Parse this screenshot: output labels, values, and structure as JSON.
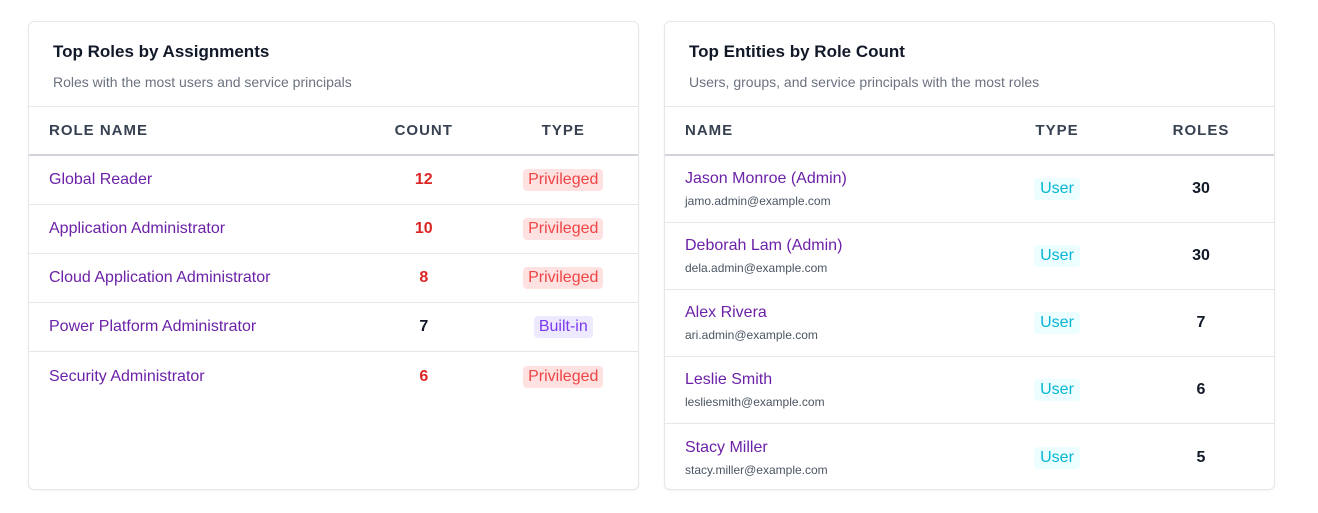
{
  "roles_card": {
    "title": "Top Roles by Assignments",
    "subtitle": "Roles with the most users and service principals",
    "columns": [
      "ROLE NAME",
      "COUNT",
      "TYPE"
    ],
    "rows": [
      {
        "name": "Global Reader",
        "count": "12",
        "type": "Privileged"
      },
      {
        "name": "Application Administrator",
        "count": "10",
        "type": "Privileged"
      },
      {
        "name": "Cloud Application Administrator",
        "count": "8",
        "type": "Privileged"
      },
      {
        "name": "Power Platform Administrator",
        "count": "7",
        "type": "Built-in"
      },
      {
        "name": "Security Administrator",
        "count": "6",
        "type": "Privileged"
      }
    ]
  },
  "entities_card": {
    "title": "Top Entities by Role Count",
    "subtitle": "Users, groups, and service principals with the most roles",
    "columns": [
      "NAME",
      "TYPE",
      "ROLES"
    ],
    "rows": [
      {
        "name": "Jason Monroe (Admin)",
        "email": "jamo.admin@example.com",
        "type": "User",
        "roles": "30"
      },
      {
        "name": "Deborah Lam (Admin)",
        "email": "dela.admin@example.com",
        "type": "User",
        "roles": "30"
      },
      {
        "name": "Alex Rivera",
        "email": "ari.admin@example.com",
        "type": "User",
        "roles": "7"
      },
      {
        "name": "Leslie Smith",
        "email": "lesliesmith@example.com",
        "type": "User",
        "roles": "6"
      },
      {
        "name": "Stacy Miller",
        "email": "stacy.miller@example.com",
        "type": "User",
        "roles": "5"
      }
    ]
  },
  "colors": {
    "link": "#6b21a8",
    "privileged": "#ef4444",
    "builtin": "#7c3aed",
    "user": "#06b6d4",
    "count_red": "#dc2626"
  }
}
